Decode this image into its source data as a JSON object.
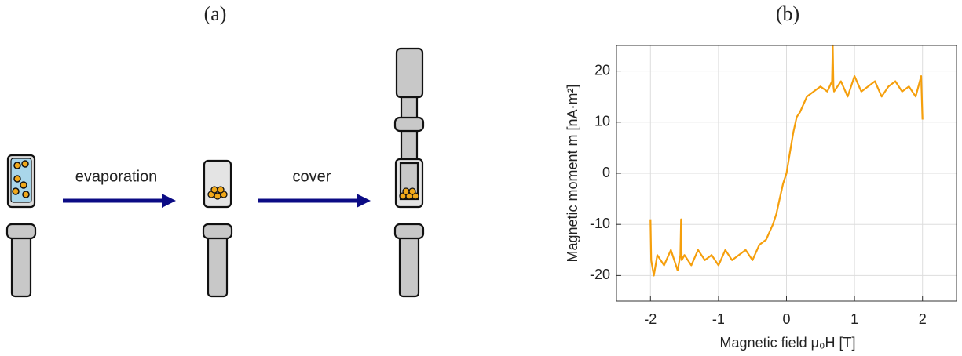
{
  "panel_labels": [
    "(a)",
    "(b)"
  ],
  "diagram": {
    "steps": [
      "evaporation",
      "cover"
    ]
  },
  "chart_data": {
    "type": "line",
    "xlabel": "Magnetic field  μ₀H  [T]",
    "ylabel": "Magnetic moment  m  [nA·m²]",
    "x": [
      -2,
      -1.99,
      -1.95,
      -1.9,
      -1.8,
      -1.7,
      -1.6,
      -1.56,
      -1.55,
      -1.54,
      -1.5,
      -1.4,
      -1.3,
      -1.2,
      -1.1,
      -1.0,
      -0.9,
      -0.8,
      -0.7,
      -0.6,
      -0.5,
      -0.4,
      -0.3,
      -0.2,
      -0.15,
      -0.1,
      -0.05,
      0,
      0.05,
      0.1,
      0.15,
      0.2,
      0.3,
      0.4,
      0.5,
      0.6,
      0.67,
      0.68,
      0.69,
      0.7,
      0.8,
      0.9,
      1.0,
      1.1,
      1.2,
      1.3,
      1.4,
      1.5,
      1.6,
      1.7,
      1.8,
      1.9,
      1.98,
      2.0
    ],
    "series": [
      {
        "color": "#f59f0c",
        "values": [
          -9,
          -17,
          -20,
          -16,
          -18,
          -15,
          -19,
          -16,
          -9,
          -17,
          -16,
          -18,
          -15,
          -17,
          -16,
          -18,
          -15,
          -17,
          -16,
          -15,
          -17,
          -14,
          -13,
          -10,
          -8,
          -5,
          -2,
          0,
          4,
          8,
          11,
          12,
          15,
          16,
          17,
          16,
          18,
          25,
          17,
          16,
          18,
          15,
          19,
          16,
          17,
          18,
          15,
          17,
          18,
          16,
          17,
          15,
          19,
          10.5
        ]
      }
    ],
    "xlim": [
      -2.5,
      2.5
    ],
    "ylim": [
      -25,
      25
    ],
    "xticks": [
      -2,
      -1,
      0,
      1,
      2
    ],
    "yticks": [
      -20,
      -10,
      0,
      10,
      20
    ],
    "grid": true
  }
}
